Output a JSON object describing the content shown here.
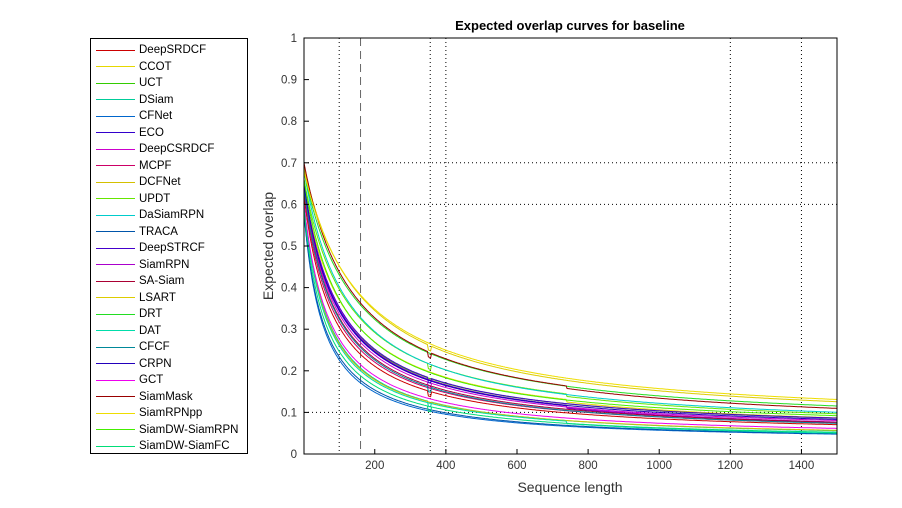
{
  "chart_data": {
    "type": "line",
    "title": "Expected overlap curves for baseline",
    "xlabel": "Sequence length",
    "ylabel": "Expected overlap",
    "xlim": [
      1,
      1500
    ],
    "ylim": [
      0,
      1
    ],
    "x_ticks": [
      "200",
      "400",
      "600",
      "800",
      "1000",
      "1200",
      "1400"
    ],
    "x_tick_values": [
      200,
      400,
      600,
      800,
      1000,
      1200,
      1400
    ],
    "y_ticks": [
      "0",
      "0.1",
      "0.2",
      "0.3",
      "0.4",
      "0.5",
      "0.6",
      "0.7",
      "0.8",
      "0.9",
      "1"
    ],
    "y_tick_values": [
      0,
      0.1,
      0.2,
      0.3,
      0.4,
      0.5,
      0.6,
      0.7,
      0.8,
      0.9,
      1
    ],
    "dotted_vlines": [
      100,
      356,
      400,
      1200,
      1400
    ],
    "dashed_vline": 160,
    "dotted_hlines": [
      0.1,
      0.6,
      0.7
    ],
    "legend_position": "outside-left",
    "series": [
      {
        "name": "DeepSRDCF",
        "color": "#cc0000",
        "y0": 0.62,
        "y_end": 0.04,
        "k": 0.012
      },
      {
        "name": "CCOT",
        "color": "#e6d800",
        "y0": 0.64,
        "y_end": 0.05,
        "k": 0.0085
      },
      {
        "name": "UCT",
        "color": "#33cc00",
        "y0": 0.63,
        "y_end": 0.048,
        "k": 0.0095
      },
      {
        "name": "DSiam",
        "color": "#00cc99",
        "y0": 0.6,
        "y_end": 0.03,
        "k": 0.014
      },
      {
        "name": "CFNet",
        "color": "#0066cc",
        "y0": 0.58,
        "y_end": 0.028,
        "k": 0.018
      },
      {
        "name": "ECO",
        "color": "#3300cc",
        "y0": 0.64,
        "y_end": 0.045,
        "k": 0.01
      },
      {
        "name": "DeepCSRDCF",
        "color": "#cc00cc",
        "y0": 0.64,
        "y_end": 0.045,
        "k": 0.0105
      },
      {
        "name": "MCPF",
        "color": "#cc0066",
        "y0": 0.63,
        "y_end": 0.042,
        "k": 0.0115
      },
      {
        "name": "DCFNet",
        "color": "#d4c000",
        "y0": 0.6,
        "y_end": 0.032,
        "k": 0.0145
      },
      {
        "name": "UPDT",
        "color": "#66e600",
        "y0": 0.66,
        "y_end": 0.055,
        "k": 0.0078
      },
      {
        "name": "DaSiamRPN",
        "color": "#00cccc",
        "y0": 0.68,
        "y_end": 0.052,
        "k": 0.008
      },
      {
        "name": "TRACA",
        "color": "#0055aa",
        "y0": 0.58,
        "y_end": 0.028,
        "k": 0.017
      },
      {
        "name": "DeepSTRCF",
        "color": "#4400cc",
        "y0": 0.65,
        "y_end": 0.048,
        "k": 0.0098
      },
      {
        "name": "SiamRPN",
        "color": "#aa00cc",
        "y0": 0.65,
        "y_end": 0.045,
        "k": 0.01
      },
      {
        "name": "SA-Siam",
        "color": "#aa0033",
        "y0": 0.64,
        "y_end": 0.042,
        "k": 0.011
      },
      {
        "name": "LSART",
        "color": "#ddcc00",
        "y0": 0.69,
        "y_end": 0.065,
        "k": 0.0062
      },
      {
        "name": "DRT",
        "color": "#22dd22",
        "y0": 0.68,
        "y_end": 0.06,
        "k": 0.0068
      },
      {
        "name": "DAT",
        "color": "#00ddaa",
        "y0": 0.6,
        "y_end": 0.032,
        "k": 0.015
      },
      {
        "name": "CFCF",
        "color": "#008899",
        "y0": 0.64,
        "y_end": 0.04,
        "k": 0.0112
      },
      {
        "name": "CRPN",
        "color": "#2200bb",
        "y0": 0.65,
        "y_end": 0.046,
        "k": 0.0102
      },
      {
        "name": "GCT",
        "color": "#ee00ee",
        "y0": 0.6,
        "y_end": 0.035,
        "k": 0.0135
      },
      {
        "name": "SiamMask",
        "color": "#990000",
        "y0": 0.7,
        "y_end": 0.06,
        "k": 0.007
      },
      {
        "name": "SiamRPNpp",
        "color": "#eedd00",
        "y0": 0.68,
        "y_end": 0.07,
        "k": 0.006
      },
      {
        "name": "SiamDW-SiamRPN",
        "color": "#44ee00",
        "y0": 0.66,
        "y_end": 0.05,
        "k": 0.009
      },
      {
        "name": "SiamDW-SiamFC",
        "color": "#00dd77",
        "y0": 0.59,
        "y_end": 0.03,
        "k": 0.016
      }
    ]
  }
}
